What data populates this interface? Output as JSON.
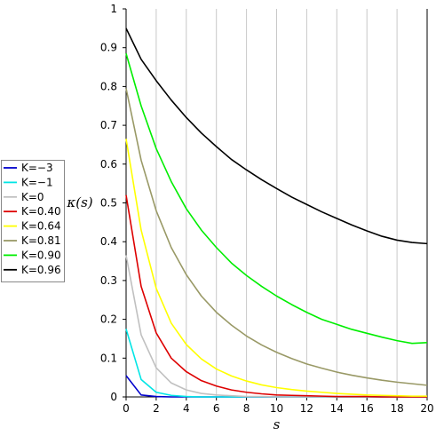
{
  "chart_data": {
    "type": "line",
    "title": "",
    "xlabel": "s",
    "ylabel": "κ(s)",
    "xlim": [
      0,
      20
    ],
    "ylim": [
      0,
      1
    ],
    "xticks": [
      "0",
      "2",
      "4",
      "6",
      "8",
      "10",
      "12",
      "14",
      "16",
      "18",
      "20"
    ],
    "yticks": [
      "0",
      "0.1",
      "0.2",
      "0.3",
      "0.4",
      "0.5",
      "0.6",
      "0.7",
      "0.8",
      "0.9",
      "1"
    ],
    "grid": "vertical",
    "legend_position": "left",
    "x": [
      0,
      1,
      2,
      3,
      4,
      5,
      6,
      7,
      8,
      9,
      10,
      11,
      12,
      13,
      14,
      15,
      16,
      17,
      18,
      19,
      20
    ],
    "series": [
      {
        "name": "K=−3",
        "color": "#0000cc",
        "values": [
          0.055,
          0.005,
          0.001,
          0.0,
          0.0,
          0.0,
          0.0,
          0.0,
          0.0,
          0.0,
          0.0,
          0.0,
          0.0,
          0.0,
          0.0,
          0.0,
          0.0,
          0.0,
          0.0,
          0.0,
          0.0
        ]
      },
      {
        "name": "K=−1",
        "color": "#00e5e5",
        "values": [
          0.175,
          0.045,
          0.012,
          0.004,
          0.001,
          0.0,
          0.0,
          0.0,
          0.0,
          0.0,
          0.0,
          0.0,
          0.0,
          0.0,
          0.0,
          0.0,
          0.0,
          0.0,
          0.0,
          0.0,
          0.0
        ]
      },
      {
        "name": "K=0",
        "color": "#c0c0c0",
        "values": [
          0.365,
          0.16,
          0.075,
          0.036,
          0.018,
          0.009,
          0.005,
          0.003,
          0.001,
          0.001,
          0.0,
          0.0,
          0.0,
          0.0,
          0.0,
          0.0,
          0.0,
          0.0,
          0.0,
          0.0,
          0.0
        ]
      },
      {
        "name": "K=0.40",
        "color": "#dd0000",
        "values": [
          0.52,
          0.285,
          0.165,
          0.1,
          0.065,
          0.042,
          0.028,
          0.018,
          0.012,
          0.008,
          0.005,
          0.004,
          0.003,
          0.002,
          0.001,
          0.001,
          0.001,
          0.0,
          0.0,
          0.0,
          0.0
        ]
      },
      {
        "name": "K=0.64",
        "color": "#ffff00",
        "values": [
          0.665,
          0.43,
          0.28,
          0.19,
          0.135,
          0.098,
          0.072,
          0.054,
          0.041,
          0.031,
          0.024,
          0.019,
          0.015,
          0.012,
          0.009,
          0.007,
          0.005,
          0.004,
          0.003,
          0.002,
          0.002
        ]
      },
      {
        "name": "K=0.81",
        "color": "#999966",
        "values": [
          0.795,
          0.61,
          0.48,
          0.385,
          0.315,
          0.26,
          0.218,
          0.185,
          0.157,
          0.134,
          0.115,
          0.099,
          0.085,
          0.074,
          0.064,
          0.056,
          0.049,
          0.043,
          0.038,
          0.034,
          0.03
        ]
      },
      {
        "name": "K=0.90",
        "color": "#00ee00",
        "values": [
          0.885,
          0.75,
          0.64,
          0.555,
          0.485,
          0.43,
          0.385,
          0.345,
          0.313,
          0.285,
          0.26,
          0.238,
          0.218,
          0.2,
          0.187,
          0.174,
          0.164,
          0.154,
          0.145,
          0.138,
          0.14
        ]
      },
      {
        "name": "K=0.96",
        "color": "#000000",
        "values": [
          0.95,
          0.87,
          0.815,
          0.765,
          0.72,
          0.68,
          0.645,
          0.612,
          0.585,
          0.56,
          0.537,
          0.515,
          0.496,
          0.477,
          0.46,
          0.443,
          0.428,
          0.414,
          0.404,
          0.398,
          0.395
        ]
      }
    ]
  }
}
